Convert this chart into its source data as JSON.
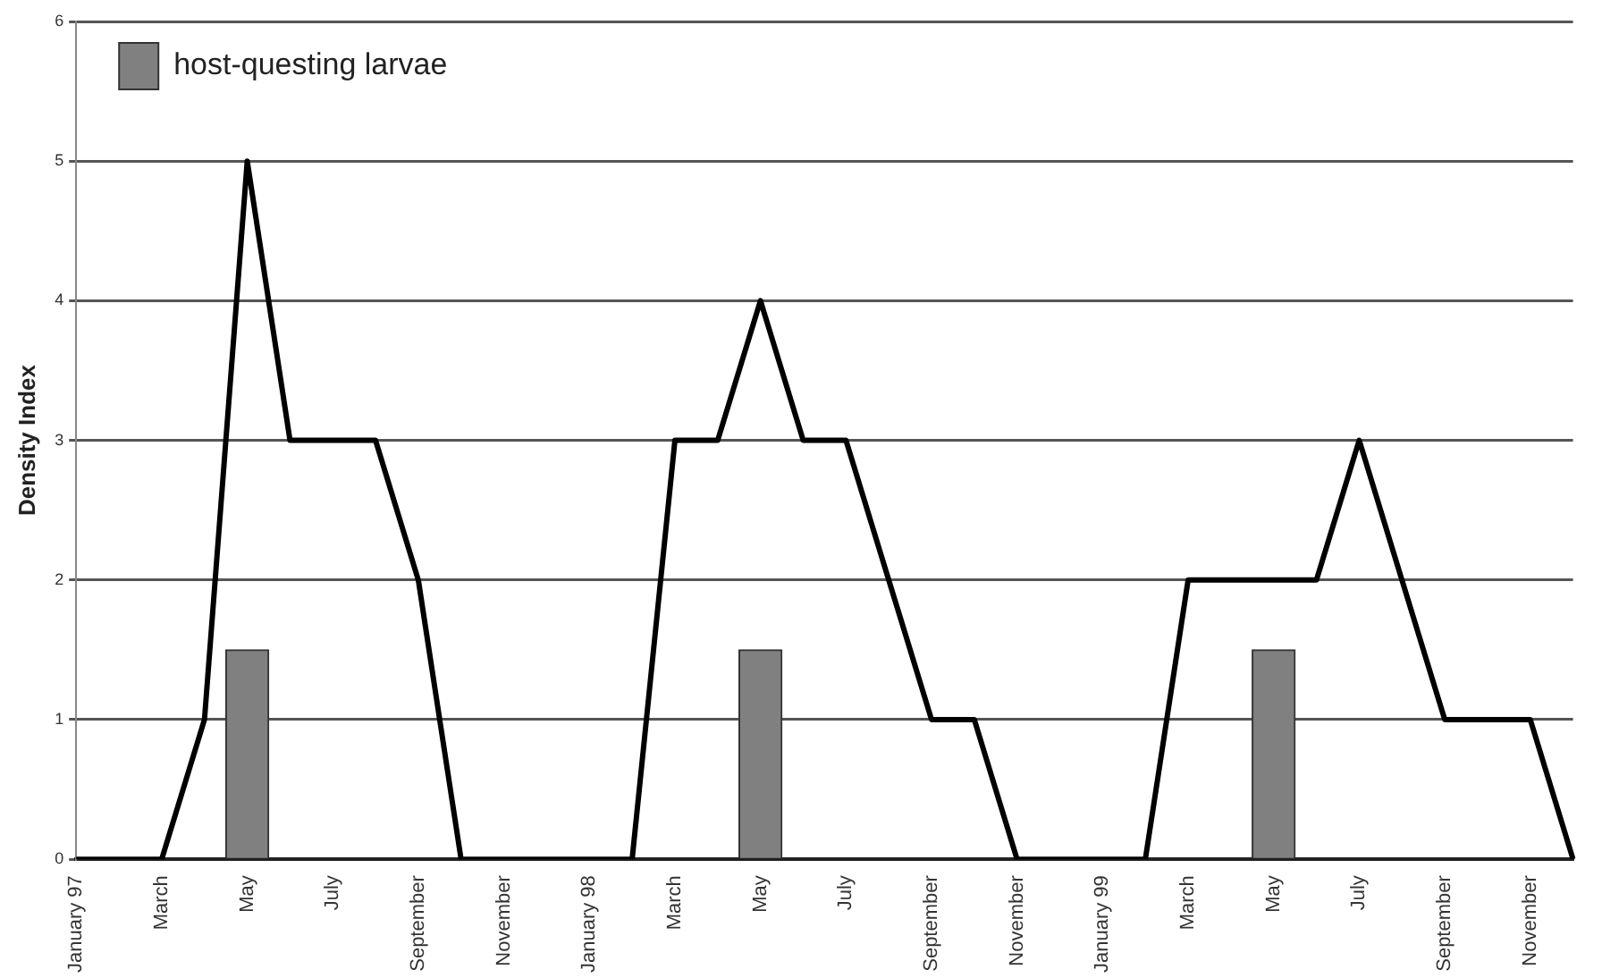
{
  "chart_data": {
    "type": "line",
    "ylabel": "Density Index",
    "categories": [
      "January 97",
      null,
      "March",
      null,
      "May",
      null,
      "July",
      null,
      "September",
      null,
      "November",
      null,
      "January 98",
      null,
      "March",
      null,
      "May",
      null,
      "July",
      null,
      "September",
      null,
      "November",
      null,
      "January 99",
      null,
      "March",
      null,
      "May",
      null,
      "July",
      null,
      "September",
      null,
      "November",
      null
    ],
    "series": [
      {
        "type": "bar",
        "name": "host-questing larvae",
        "color": "#808080",
        "values": [
          null,
          null,
          null,
          null,
          1.5,
          null,
          null,
          null,
          null,
          null,
          null,
          null,
          null,
          null,
          null,
          null,
          1.5,
          null,
          null,
          null,
          null,
          null,
          null,
          null,
          null,
          null,
          null,
          null,
          1.5,
          null,
          null,
          null,
          null,
          null,
          null,
          null
        ]
      },
      {
        "color": "#000000",
        "values": [
          0,
          0,
          0,
          1,
          5,
          3,
          3,
          3,
          2,
          0,
          0,
          0,
          0,
          0,
          3,
          3,
          4,
          3,
          3,
          2,
          1,
          1,
          0,
          0,
          0,
          0,
          2,
          2,
          2,
          2,
          3,
          2,
          1,
          1,
          1,
          0
        ]
      }
    ],
    "ylim": [
      0,
      6
    ],
    "yticks": [
      0,
      1,
      2,
      3,
      4,
      5,
      6
    ],
    "grid": "y",
    "legend": "top left",
    "marker": "none"
  }
}
